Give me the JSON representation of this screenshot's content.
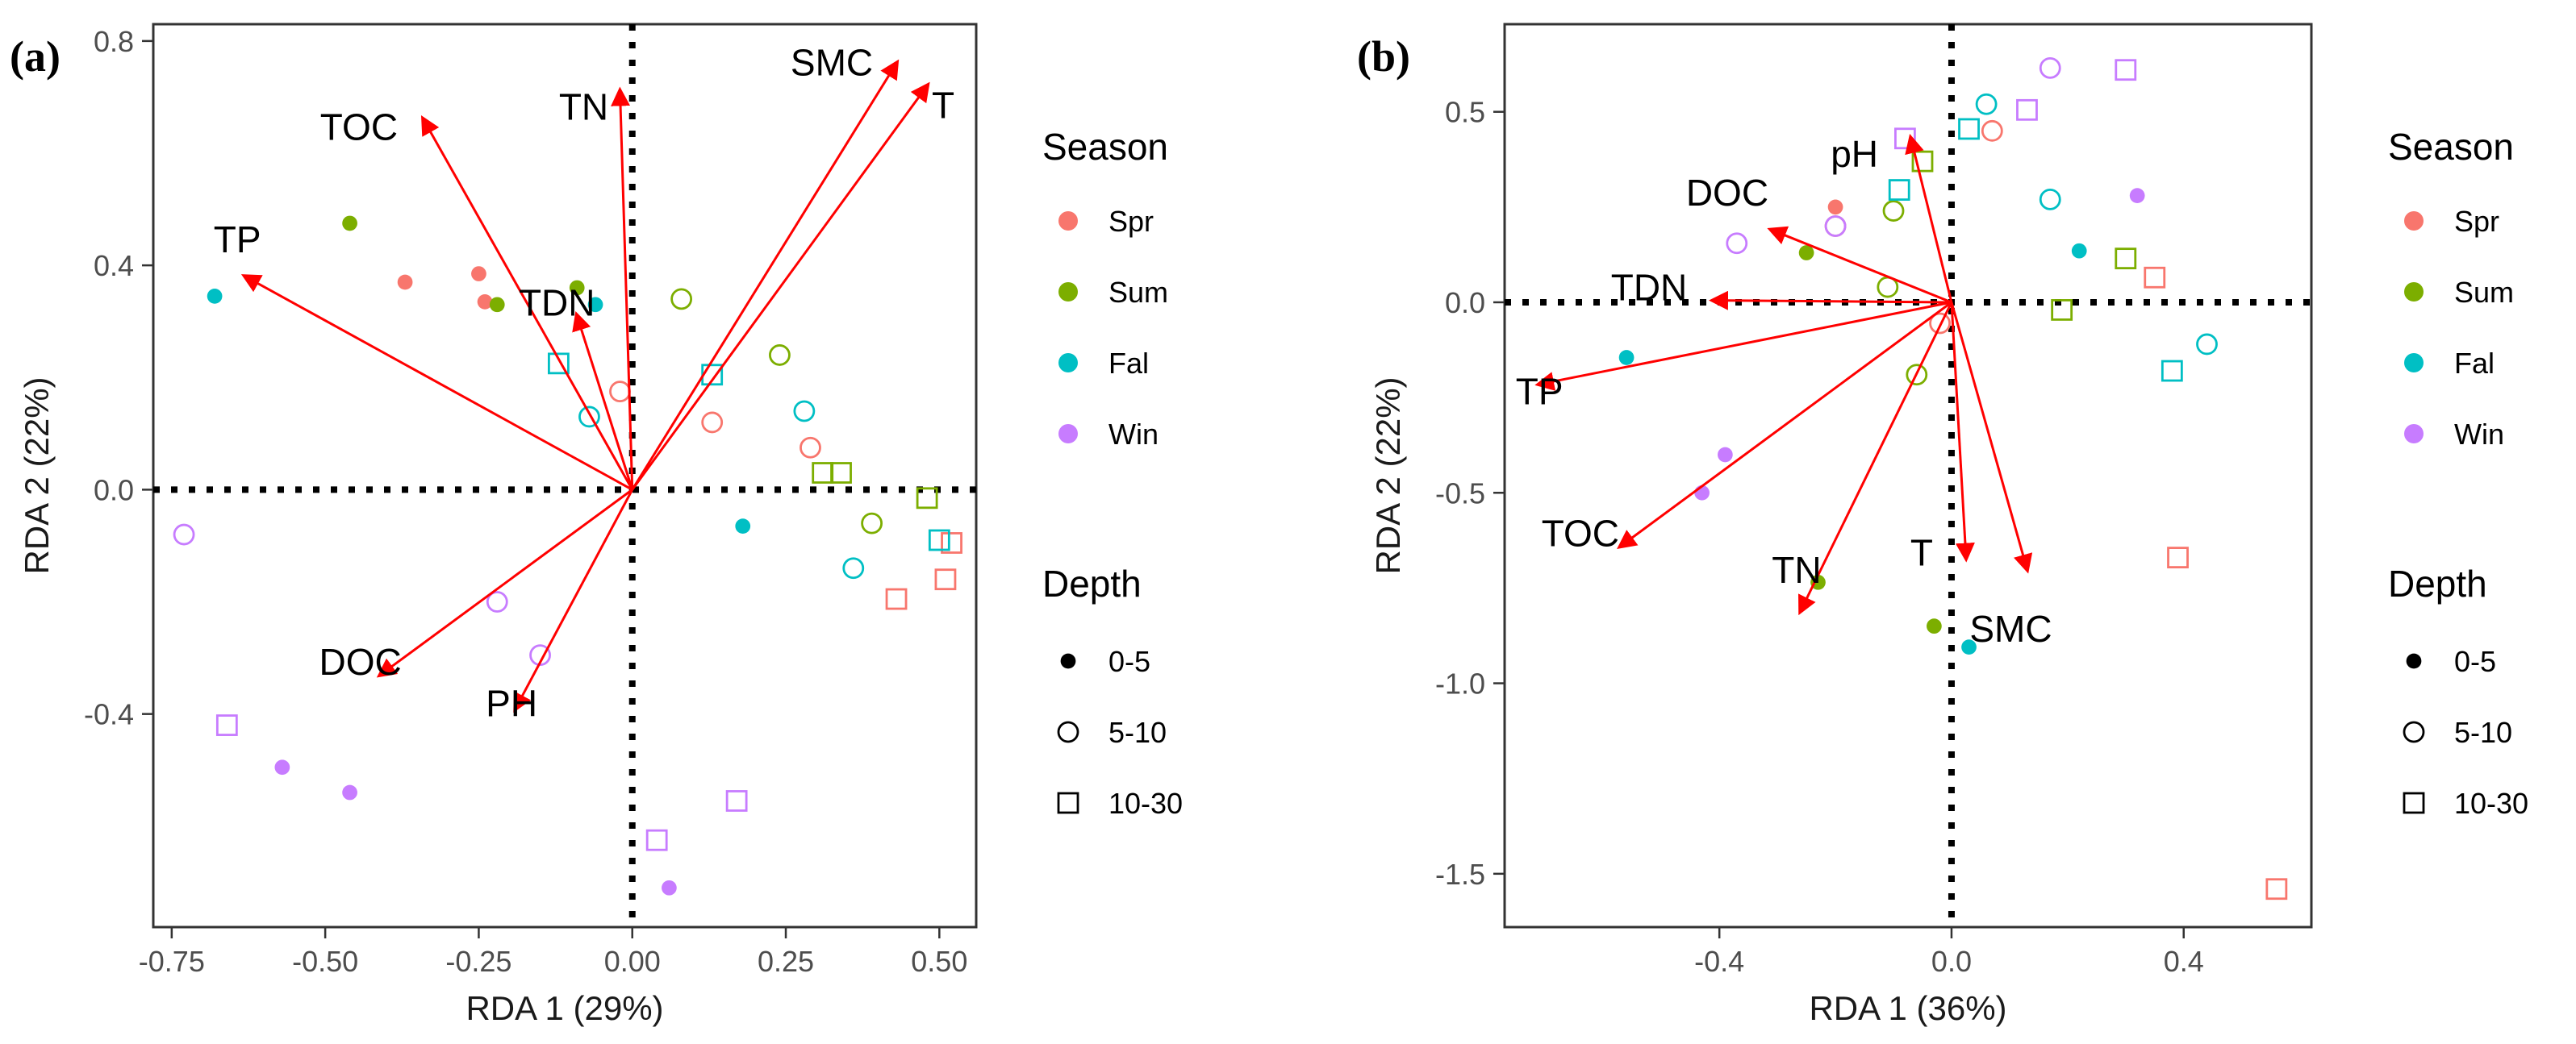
{
  "legend": {
    "season_title": "Season",
    "seasons": [
      {
        "label": "Spr",
        "color": "#F8766D"
      },
      {
        "label": "Sum",
        "color": "#7CAE00"
      },
      {
        "label": "Fal",
        "color": "#00BFC4"
      },
      {
        "label": "Win",
        "color": "#C77CFF"
      }
    ],
    "depth_title": "Depth",
    "depths": [
      {
        "label": "0-5",
        "shape": "filled-circle"
      },
      {
        "label": "5-10",
        "shape": "open-circle"
      },
      {
        "label": "10-30",
        "shape": "open-square"
      }
    ]
  },
  "chart_data": [
    {
      "type": "scatter",
      "panel": "(a)",
      "xlabel": "RDA 1 (29%)",
      "ylabel": "RDA 2 (22%)",
      "xlim": [
        -0.78,
        0.56
      ],
      "ylim": [
        -0.78,
        0.83
      ],
      "xticks": [
        -0.75,
        -0.5,
        -0.25,
        0.0,
        0.25,
        0.5
      ],
      "xtick_labels": [
        "-0.75",
        "-0.50",
        "-0.25",
        "0.00",
        "0.25",
        "0.50"
      ],
      "yticks": [
        -0.4,
        0.0,
        0.4,
        0.8
      ],
      "ytick_labels": [
        "-0.4",
        "0.0",
        "0.4",
        "0.8"
      ],
      "arrows": [
        {
          "label": "TOC",
          "x": -0.34,
          "y": 0.66
        },
        {
          "label": "TN",
          "x": -0.02,
          "y": 0.71
        },
        {
          "label": "SMC",
          "x": 0.43,
          "y": 0.76
        },
        {
          "label": "T",
          "x": 0.48,
          "y": 0.72
        },
        {
          "label": "TP",
          "x": -0.63,
          "y": 0.38
        },
        {
          "label": "TDN",
          "x": -0.09,
          "y": 0.31
        },
        {
          "label": "DOC",
          "x": -0.41,
          "y": -0.33
        },
        {
          "label": "PH",
          "x": -0.19,
          "y": -0.39
        }
      ],
      "points": [
        {
          "x": -0.37,
          "y": 0.37,
          "season": "Spr",
          "depth": "0-5"
        },
        {
          "x": -0.25,
          "y": 0.385,
          "season": "Spr",
          "depth": "0-5"
        },
        {
          "x": -0.24,
          "y": 0.335,
          "season": "Spr",
          "depth": "0-5"
        },
        {
          "x": -0.46,
          "y": 0.475,
          "season": "Sum",
          "depth": "0-5"
        },
        {
          "x": -0.22,
          "y": 0.33,
          "season": "Sum",
          "depth": "0-5"
        },
        {
          "x": -0.09,
          "y": 0.36,
          "season": "Sum",
          "depth": "0-5"
        },
        {
          "x": -0.68,
          "y": 0.345,
          "season": "Fal",
          "depth": "0-5"
        },
        {
          "x": -0.06,
          "y": 0.33,
          "season": "Fal",
          "depth": "0-5"
        },
        {
          "x": 0.18,
          "y": -0.065,
          "season": "Fal",
          "depth": "0-5"
        },
        {
          "x": -0.57,
          "y": -0.495,
          "season": "Win",
          "depth": "0-5"
        },
        {
          "x": -0.46,
          "y": -0.54,
          "season": "Win",
          "depth": "0-5"
        },
        {
          "x": 0.06,
          "y": -0.71,
          "season": "Win",
          "depth": "0-5"
        },
        {
          "x": -0.02,
          "y": 0.175,
          "season": "Spr",
          "depth": "5-10"
        },
        {
          "x": 0.13,
          "y": 0.12,
          "season": "Spr",
          "depth": "5-10"
        },
        {
          "x": 0.29,
          "y": 0.075,
          "season": "Spr",
          "depth": "5-10"
        },
        {
          "x": 0.08,
          "y": 0.34,
          "season": "Sum",
          "depth": "5-10"
        },
        {
          "x": 0.24,
          "y": 0.24,
          "season": "Sum",
          "depth": "5-10"
        },
        {
          "x": 0.39,
          "y": -0.06,
          "season": "Sum",
          "depth": "5-10"
        },
        {
          "x": -0.07,
          "y": 0.13,
          "season": "Fal",
          "depth": "5-10"
        },
        {
          "x": 0.28,
          "y": 0.14,
          "season": "Fal",
          "depth": "5-10"
        },
        {
          "x": 0.36,
          "y": -0.14,
          "season": "Fal",
          "depth": "5-10"
        },
        {
          "x": -0.73,
          "y": -0.08,
          "season": "Win",
          "depth": "5-10"
        },
        {
          "x": -0.22,
          "y": -0.2,
          "season": "Win",
          "depth": "5-10"
        },
        {
          "x": -0.15,
          "y": -0.295,
          "season": "Win",
          "depth": "5-10"
        },
        {
          "x": 0.43,
          "y": -0.195,
          "season": "Spr",
          "depth": "10-30"
        },
        {
          "x": 0.51,
          "y": -0.16,
          "season": "Spr",
          "depth": "10-30"
        },
        {
          "x": 0.52,
          "y": -0.095,
          "season": "Spr",
          "depth": "10-30"
        },
        {
          "x": 0.31,
          "y": 0.03,
          "season": "Sum",
          "depth": "10-30"
        },
        {
          "x": 0.34,
          "y": 0.03,
          "season": "Sum",
          "depth": "10-30"
        },
        {
          "x": 0.48,
          "y": -0.015,
          "season": "Sum",
          "depth": "10-30"
        },
        {
          "x": -0.12,
          "y": 0.225,
          "season": "Fal",
          "depth": "10-30"
        },
        {
          "x": 0.13,
          "y": 0.205,
          "season": "Fal",
          "depth": "10-30"
        },
        {
          "x": 0.5,
          "y": -0.09,
          "season": "Fal",
          "depth": "10-30"
        },
        {
          "x": -0.66,
          "y": -0.42,
          "season": "Win",
          "depth": "10-30"
        },
        {
          "x": 0.17,
          "y": -0.555,
          "season": "Win",
          "depth": "10-30"
        },
        {
          "x": 0.04,
          "y": -0.625,
          "season": "Win",
          "depth": "10-30"
        }
      ]
    },
    {
      "type": "scatter",
      "panel": "(b)",
      "xlabel": "RDA 1 (36%)",
      "ylabel": "RDA 2 (22%)",
      "xlim": [
        -0.77,
        0.62
      ],
      "ylim": [
        -1.64,
        0.73
      ],
      "xticks": [
        -0.4,
        0.0,
        0.4
      ],
      "xtick_labels": [
        "-0.4",
        "0.0",
        "0.4"
      ],
      "yticks": [
        -1.5,
        -1.0,
        -0.5,
        0.0,
        0.5
      ],
      "ytick_labels": [
        "-1.5",
        "-1.0",
        "-0.5",
        "0.0",
        "0.5"
      ],
      "arrows": [
        {
          "label": "pH",
          "x": -0.07,
          "y": 0.43
        },
        {
          "label": "DOC",
          "x": -0.31,
          "y": 0.19
        },
        {
          "label": "TDN",
          "x": -0.41,
          "y": 0.005
        },
        {
          "label": "TP",
          "x": -0.71,
          "y": -0.215
        },
        {
          "label": "TOC",
          "x": -0.57,
          "y": -0.64
        },
        {
          "label": "TN",
          "x": -0.26,
          "y": -0.81
        },
        {
          "label": "T",
          "x": 0.025,
          "y": -0.67
        },
        {
          "label": "SMC",
          "x": 0.13,
          "y": -0.7
        }
      ],
      "points": [
        {
          "x": -0.2,
          "y": 0.25,
          "season": "Spr",
          "depth": "0-5"
        },
        {
          "x": -0.25,
          "y": 0.13,
          "season": "Sum",
          "depth": "0-5"
        },
        {
          "x": -0.23,
          "y": -0.735,
          "season": "Sum",
          "depth": "0-5"
        },
        {
          "x": -0.03,
          "y": -0.85,
          "season": "Sum",
          "depth": "0-5"
        },
        {
          "x": -0.56,
          "y": -0.145,
          "season": "Fal",
          "depth": "0-5"
        },
        {
          "x": 0.22,
          "y": 0.135,
          "season": "Fal",
          "depth": "0-5"
        },
        {
          "x": 0.03,
          "y": -0.905,
          "season": "Fal",
          "depth": "0-5"
        },
        {
          "x": 0.32,
          "y": 0.28,
          "season": "Win",
          "depth": "0-5"
        },
        {
          "x": -0.39,
          "y": -0.4,
          "season": "Win",
          "depth": "0-5"
        },
        {
          "x": -0.43,
          "y": -0.5,
          "season": "Win",
          "depth": "0-5"
        },
        {
          "x": -0.2,
          "y": 0.2,
          "season": "Spr",
          "depth": "5-10"
        },
        {
          "x": -0.02,
          "y": -0.055,
          "season": "Spr",
          "depth": "5-10"
        },
        {
          "x": 0.07,
          "y": 0.45,
          "season": "Spr",
          "depth": "5-10"
        },
        {
          "x": -0.11,
          "y": 0.04,
          "season": "Sum",
          "depth": "5-10"
        },
        {
          "x": -0.1,
          "y": 0.24,
          "season": "Sum",
          "depth": "5-10"
        },
        {
          "x": -0.06,
          "y": -0.19,
          "season": "Sum",
          "depth": "5-10"
        },
        {
          "x": 0.06,
          "y": 0.52,
          "season": "Fal",
          "depth": "5-10"
        },
        {
          "x": 0.17,
          "y": 0.27,
          "season": "Fal",
          "depth": "5-10"
        },
        {
          "x": 0.44,
          "y": -0.11,
          "season": "Fal",
          "depth": "5-10"
        },
        {
          "x": -0.37,
          "y": 0.155,
          "season": "Win",
          "depth": "5-10"
        },
        {
          "x": -0.2,
          "y": 0.2,
          "season": "Win",
          "depth": "5-10"
        },
        {
          "x": 0.17,
          "y": 0.615,
          "season": "Win",
          "depth": "5-10"
        },
        {
          "x": 0.35,
          "y": 0.065,
          "season": "Spr",
          "depth": "10-30"
        },
        {
          "x": 0.39,
          "y": -0.67,
          "season": "Spr",
          "depth": "10-30"
        },
        {
          "x": 0.56,
          "y": -1.54,
          "season": "Spr",
          "depth": "10-30"
        },
        {
          "x": -0.05,
          "y": 0.37,
          "season": "Sum",
          "depth": "10-30"
        },
        {
          "x": 0.19,
          "y": -0.02,
          "season": "Sum",
          "depth": "10-30"
        },
        {
          "x": 0.3,
          "y": 0.115,
          "season": "Sum",
          "depth": "10-30"
        },
        {
          "x": -0.09,
          "y": 0.295,
          "season": "Fal",
          "depth": "10-30"
        },
        {
          "x": 0.03,
          "y": 0.455,
          "season": "Fal",
          "depth": "10-30"
        },
        {
          "x": 0.38,
          "y": -0.18,
          "season": "Fal",
          "depth": "10-30"
        },
        {
          "x": 0.13,
          "y": 0.505,
          "season": "Win",
          "depth": "10-30"
        },
        {
          "x": 0.3,
          "y": 0.61,
          "season": "Win",
          "depth": "10-30"
        },
        {
          "x": -0.08,
          "y": 0.43,
          "season": "Win",
          "depth": "10-30"
        }
      ]
    }
  ]
}
